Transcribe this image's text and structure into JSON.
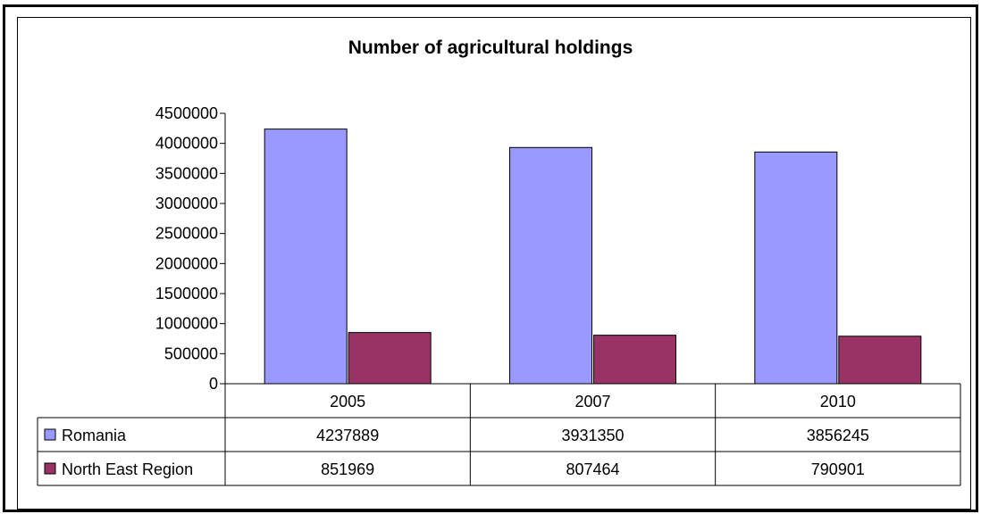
{
  "chart_data": {
    "type": "bar",
    "title": "Number of agricultural holdings",
    "categories": [
      "2005",
      "2007",
      "2010"
    ],
    "series": [
      {
        "name": "Romania",
        "values": [
          4237889,
          3931350,
          3856245
        ],
        "color": "#9999ff"
      },
      {
        "name": "North East Region",
        "values": [
          851969,
          807464,
          790901
        ],
        "color": "#993366"
      }
    ],
    "ylim": [
      0,
      4500000
    ],
    "yticks": [
      "0",
      "500000",
      "1000000",
      "1500000",
      "2000000",
      "2500000",
      "3000000",
      "3500000",
      "4000000",
      "4500000"
    ],
    "xlabel": "",
    "ylabel": "",
    "grid": false,
    "legend": "data-table"
  }
}
